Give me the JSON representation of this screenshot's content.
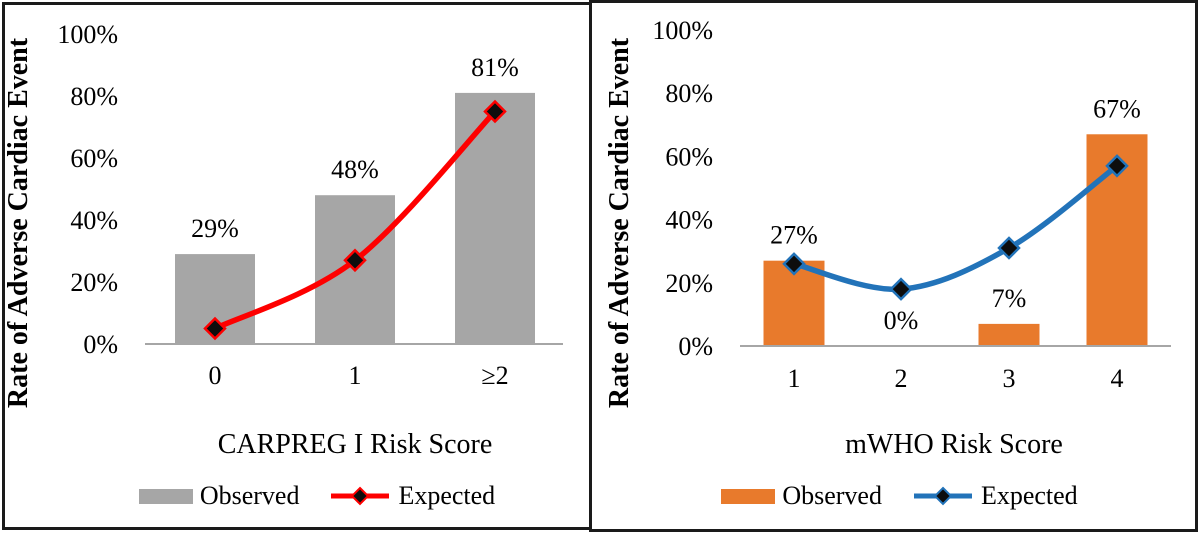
{
  "figure_ylabel": "Rate of Adverse Cardiac Event",
  "chart_data": [
    {
      "type": "bar",
      "subtype": "observed-bars-with-expected-line",
      "title": "",
      "xlabel": "CARPREG I Risk Score",
      "ylabel": "Rate of Adverse Cardiac Event",
      "categories": [
        "0",
        "1",
        "≥2"
      ],
      "series": [
        {
          "name": "Observed",
          "type": "bar",
          "values": [
            29,
            48,
            81
          ],
          "labels": [
            "29%",
            "48%",
            "81%"
          ],
          "color": "#a6a6a6"
        },
        {
          "name": "Expected",
          "type": "line",
          "values": [
            5,
            27,
            75
          ],
          "color": "#fe0000",
          "marker": "diamond-icon",
          "marker_fill": "#0d0d0d"
        }
      ],
      "ylim": [
        0,
        100
      ],
      "y_tick_values": [
        0,
        20,
        40,
        60,
        80,
        100
      ],
      "y_ticks": [
        "0%",
        "20%",
        "40%",
        "60%",
        "80%",
        "100%"
      ],
      "grid": false,
      "legend_position": "bottom",
      "axis_color": "#a6a6a6"
    },
    {
      "type": "bar",
      "subtype": "observed-bars-with-expected-line",
      "title": "",
      "xlabel": "mWHO Risk Score",
      "ylabel": "Rate of Adverse Cardiac Event",
      "categories": [
        "1",
        "2",
        "3",
        "4"
      ],
      "series": [
        {
          "name": "Observed",
          "type": "bar",
          "values": [
            27,
            0,
            7,
            67
          ],
          "labels": [
            "27%",
            "0%",
            "7%",
            "67%"
          ],
          "color": "#e87a2c"
        },
        {
          "name": "Expected",
          "type": "line",
          "values": [
            26,
            18,
            31,
            57
          ],
          "color": "#2273b9",
          "marker": "diamond-icon",
          "marker_fill": "#0d0d0d"
        }
      ],
      "ylim": [
        0,
        100
      ],
      "y_tick_values": [
        0,
        20,
        40,
        60,
        80,
        100
      ],
      "y_ticks": [
        "0%",
        "20%",
        "40%",
        "60%",
        "80%",
        "100%"
      ],
      "grid": false,
      "legend_position": "bottom",
      "axis_color": "#a6a6a6"
    }
  ]
}
